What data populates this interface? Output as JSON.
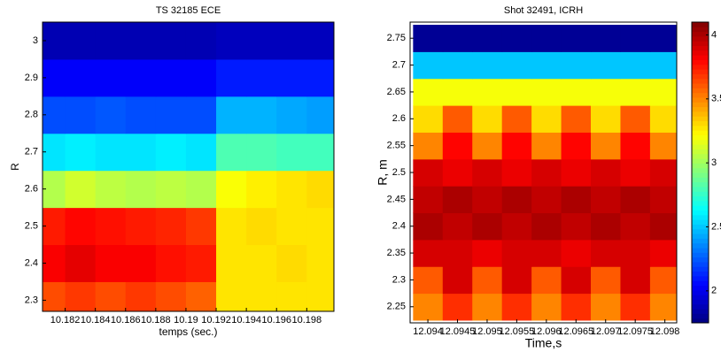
{
  "chart_data": [
    {
      "type": "heatmap",
      "title": "TS 32185 ECE",
      "xlabel": "temps (sec.)",
      "ylabel": "R",
      "x": [
        10.181,
        10.183,
        10.185,
        10.187,
        10.189,
        10.191,
        10.193,
        10.195,
        10.197,
        10.199
      ],
      "y": [
        2.3,
        2.4,
        2.5,
        2.6,
        2.7,
        2.8,
        2.9,
        3.0
      ],
      "z": [
        [
          0.8,
          0.82,
          0.8,
          0.82,
          0.8,
          0.78,
          0.65,
          0.65,
          0.65,
          0.65
        ],
        [
          0.88,
          0.9,
          0.88,
          0.88,
          0.86,
          0.85,
          0.65,
          0.65,
          0.66,
          0.65
        ],
        [
          0.85,
          0.87,
          0.86,
          0.85,
          0.84,
          0.82,
          0.65,
          0.66,
          0.65,
          0.65
        ],
        [
          0.55,
          0.58,
          0.56,
          0.55,
          0.56,
          0.55,
          0.62,
          0.64,
          0.65,
          0.66
        ],
        [
          0.35,
          0.36,
          0.35,
          0.35,
          0.36,
          0.35,
          0.45,
          0.45,
          0.44,
          0.44
        ],
        [
          0.2,
          0.2,
          0.21,
          0.2,
          0.2,
          0.2,
          0.3,
          0.3,
          0.29,
          0.28
        ],
        [
          0.12,
          0.12,
          0.12,
          0.12,
          0.12,
          0.12,
          0.15,
          0.15,
          0.15,
          0.15
        ],
        [
          0.05,
          0.05,
          0.05,
          0.05,
          0.05,
          0.05,
          0.06,
          0.06,
          0.06,
          0.06
        ]
      ],
      "zlim": [
        0,
        1
      ],
      "xlim": [
        10.1805,
        10.1998
      ],
      "xticks": [
        10.182,
        10.184,
        10.186,
        10.188,
        10.19,
        10.192,
        10.194,
        10.196,
        10.198
      ],
      "ylim": [
        2.27,
        3.05
      ],
      "yticks": [
        2.3,
        2.4,
        2.5,
        2.6,
        2.7,
        2.8,
        2.9,
        3
      ]
    },
    {
      "type": "heatmap",
      "title": "Shot 32491, ICRH",
      "xlabel": "Time,s",
      "ylabel": "R, m",
      "x": [
        12.094,
        12.0945,
        12.095,
        12.0955,
        12.096,
        12.0965,
        12.097,
        12.0975,
        12.098
      ],
      "y": [
        2.25,
        2.3,
        2.35,
        2.4,
        2.45,
        2.5,
        2.55,
        2.6,
        2.65,
        2.7,
        2.75
      ],
      "z": [
        [
          3.5,
          3.7,
          3.5,
          3.7,
          3.5,
          3.7,
          3.5,
          3.7,
          3.5
        ],
        [
          3.6,
          3.9,
          3.6,
          3.9,
          3.6,
          3.9,
          3.6,
          3.9,
          3.6
        ],
        [
          3.9,
          3.9,
          3.85,
          3.9,
          3.9,
          3.85,
          3.9,
          3.9,
          3.85
        ],
        [
          4.0,
          3.95,
          4.0,
          3.95,
          4.0,
          3.95,
          4.0,
          3.95,
          4.0
        ],
        [
          3.95,
          4.0,
          3.95,
          4.0,
          3.95,
          4.0,
          3.95,
          4.0,
          3.95
        ],
        [
          3.9,
          3.85,
          3.9,
          3.85,
          3.9,
          3.85,
          3.9,
          3.85,
          3.9
        ],
        [
          3.5,
          3.8,
          3.5,
          3.8,
          3.5,
          3.8,
          3.5,
          3.8,
          3.5
        ],
        [
          3.3,
          3.6,
          3.3,
          3.6,
          3.3,
          3.6,
          3.3,
          3.6,
          3.3
        ],
        [
          3.2,
          3.2,
          3.2,
          3.2,
          3.2,
          3.2,
          3.2,
          3.2,
          3.2
        ],
        [
          2.5,
          2.5,
          2.5,
          2.5,
          2.5,
          2.5,
          2.5,
          2.5,
          2.5
        ],
        [
          1.8,
          1.8,
          1.8,
          1.8,
          1.8,
          1.8,
          1.8,
          1.8,
          1.8
        ]
      ],
      "zlim": [
        1.75,
        4.1
      ],
      "zticks": [
        2,
        2.5,
        3,
        3.5,
        4
      ],
      "xlim": [
        12.0937,
        12.0982
      ],
      "xticks": [
        12.094,
        12.0945,
        12.095,
        12.0955,
        12.096,
        12.0965,
        12.097,
        12.0975,
        12.098
      ],
      "ylim": [
        2.22,
        2.78
      ],
      "yticks": [
        2.25,
        2.3,
        2.35,
        2.4,
        2.45,
        2.5,
        2.55,
        2.6,
        2.65,
        2.7,
        2.75
      ]
    }
  ]
}
